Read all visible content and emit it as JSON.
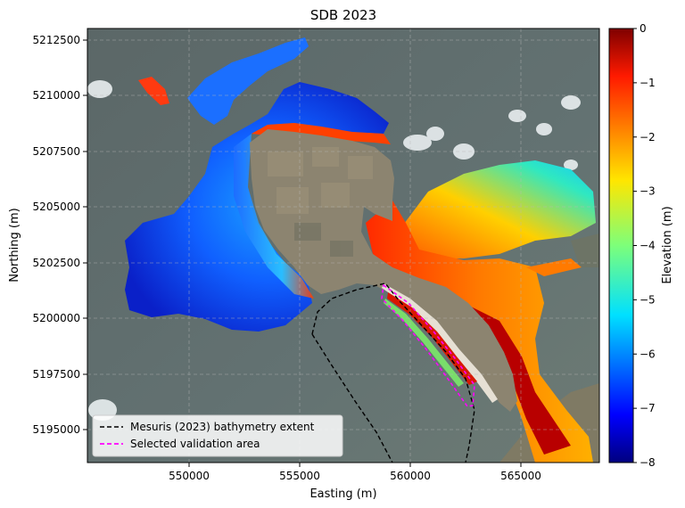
{
  "title": "SDB 2023",
  "xlabel": "Easting (m)",
  "ylabel": "Northing (m)",
  "colorbar": {
    "label": "Elevation (m)",
    "ticks": [
      "0",
      "−1",
      "−2",
      "−3",
      "−4",
      "−5",
      "−6",
      "−7",
      "−8"
    ],
    "range": [
      -8,
      0
    ],
    "colormap": "jet"
  },
  "x_ticks": [
    "550000",
    "555000",
    "560000",
    "565000"
  ],
  "y_ticks": [
    "5212500",
    "5210000",
    "5207500",
    "5205000",
    "5202500",
    "5200000",
    "5197500",
    "5195000"
  ],
  "axes_ranges": {
    "x": [
      545500,
      568800
    ],
    "y": [
      5193500,
      5213000
    ]
  },
  "grid": true,
  "legend": {
    "placement": "lower-left",
    "entries": [
      {
        "label": "Mesuris (2023) bathymetry extent",
        "color": "#000000",
        "style": "dashed"
      },
      {
        "label": "Selected validation area",
        "color": "#ff00ff",
        "style": "dashed"
      }
    ]
  },
  "colors": {
    "sea": "#5e6c6c",
    "land": "#8e8470",
    "deep": "#0d1fb8",
    "shallow": "#c81400"
  }
}
